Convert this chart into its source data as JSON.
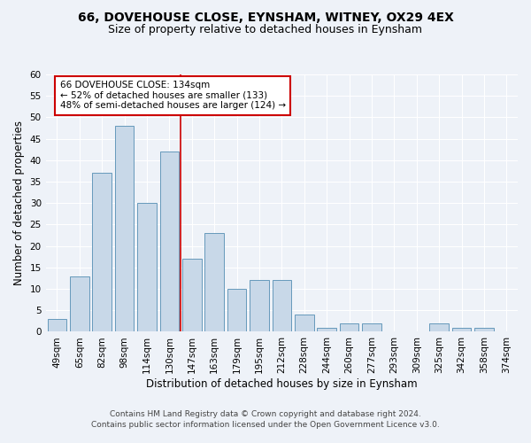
{
  "title": "66, DOVEHOUSE CLOSE, EYNSHAM, WITNEY, OX29 4EX",
  "subtitle": "Size of property relative to detached houses in Eynsham",
  "xlabel": "Distribution of detached houses by size in Eynsham",
  "ylabel": "Number of detached properties",
  "categories": [
    "49sqm",
    "65sqm",
    "82sqm",
    "98sqm",
    "114sqm",
    "130sqm",
    "147sqm",
    "163sqm",
    "179sqm",
    "195sqm",
    "212sqm",
    "228sqm",
    "244sqm",
    "260sqm",
    "277sqm",
    "293sqm",
    "309sqm",
    "325sqm",
    "342sqm",
    "358sqm",
    "374sqm"
  ],
  "values": [
    3,
    13,
    37,
    48,
    30,
    42,
    17,
    23,
    10,
    12,
    12,
    4,
    1,
    2,
    2,
    0,
    0,
    2,
    1,
    1,
    0
  ],
  "bar_color": "#c8d8e8",
  "bar_edge_color": "#6699bb",
  "vline_x": 5.5,
  "vline_color": "#cc0000",
  "annotation_title": "66 DOVEHOUSE CLOSE: 134sqm",
  "annotation_line2": "← 52% of detached houses are smaller (133)",
  "annotation_line3": "48% of semi-detached houses are larger (124) →",
  "annotation_box_color": "#ffffff",
  "annotation_box_edge": "#cc0000",
  "ylim": [
    0,
    60
  ],
  "yticks": [
    0,
    5,
    10,
    15,
    20,
    25,
    30,
    35,
    40,
    45,
    50,
    55,
    60
  ],
  "footer1": "Contains HM Land Registry data © Crown copyright and database right 2024.",
  "footer2": "Contains public sector information licensed under the Open Government Licence v3.0.",
  "background_color": "#eef2f8",
  "grid_color": "#ffffff",
  "title_fontsize": 10,
  "subtitle_fontsize": 9,
  "axis_label_fontsize": 8.5,
  "tick_fontsize": 7.5,
  "annotation_fontsize": 7.5,
  "footer_fontsize": 6.5
}
